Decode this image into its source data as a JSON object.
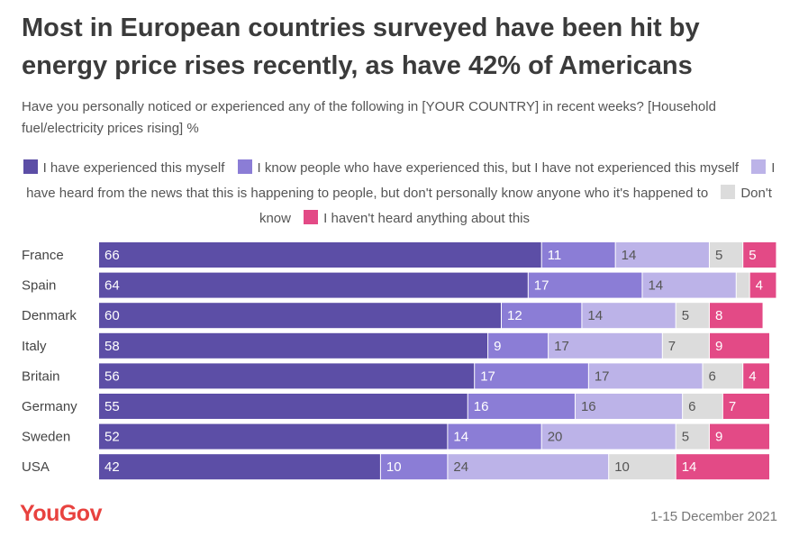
{
  "header": {
    "title": "Most in European countries surveyed have been hit by energy price rises recently, as have 42% of Americans",
    "subtitle": "Have you personally noticed or experienced any of the following in [YOUR COUNTRY] in recent weeks? [Household fuel/electricity prices rising] %"
  },
  "footer": {
    "brand": "YouGov",
    "date": "1-15 December 2021"
  },
  "chart_data": {
    "type": "bar",
    "orientation": "horizontal",
    "stacked": true,
    "categories": [
      "France",
      "Spain",
      "Denmark",
      "Italy",
      "Britain",
      "Germany",
      "Sweden",
      "USA"
    ],
    "series": [
      {
        "name": "I have experienced this myself",
        "color": "#5c4ea6",
        "values": [
          66,
          64,
          60,
          58,
          56,
          55,
          52,
          42
        ]
      },
      {
        "name": "I know people who have experienced this, but I have not experienced this myself",
        "color": "#8b7dd6",
        "values": [
          11,
          17,
          12,
          9,
          17,
          16,
          14,
          10
        ]
      },
      {
        "name": "I have heard from the news that this is happening to people, but don't personally know anyone who it's happened to",
        "color": "#bcb3e8",
        "values": [
          14,
          14,
          14,
          17,
          17,
          16,
          20,
          24
        ]
      },
      {
        "name": "Don't know",
        "color": "#dcdcdc",
        "values": [
          5,
          2,
          5,
          7,
          6,
          6,
          5,
          10
        ]
      },
      {
        "name": "I haven't heard anything about this",
        "color": "#e34a86",
        "values": [
          5,
          4,
          8,
          9,
          4,
          7,
          9,
          14
        ]
      }
    ],
    "hidden_labels": [
      [
        false,
        false,
        false,
        false,
        false
      ],
      [
        false,
        false,
        false,
        true,
        false
      ],
      [
        false,
        false,
        false,
        false,
        false
      ],
      [
        false,
        false,
        false,
        false,
        false
      ],
      [
        false,
        false,
        false,
        false,
        false
      ],
      [
        false,
        false,
        false,
        false,
        false
      ],
      [
        false,
        false,
        false,
        false,
        false
      ],
      [
        false,
        false,
        false,
        false,
        false
      ]
    ],
    "xlim": [
      0,
      100
    ],
    "grid": false,
    "legend_position": "top"
  }
}
